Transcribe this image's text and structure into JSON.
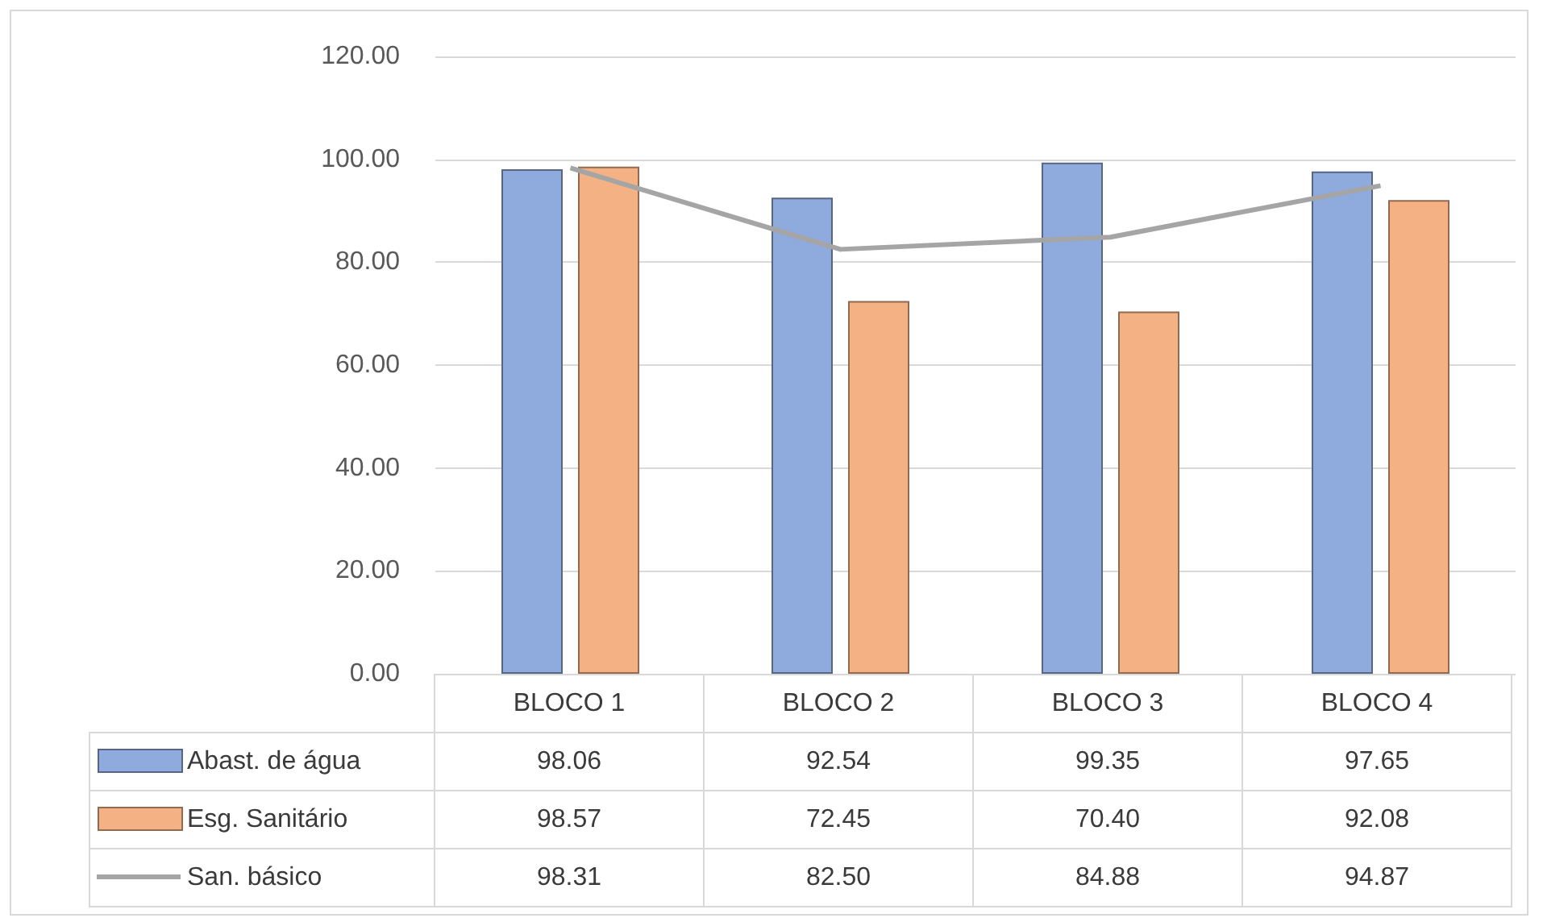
{
  "chart_data": {
    "type": "bar",
    "categories": [
      "BLOCO 1",
      "BLOCO 2",
      "BLOCO 3",
      "BLOCO 4"
    ],
    "series": [
      {
        "name": "Abast. de água",
        "color": "#8faadc",
        "values": [
          98.06,
          92.54,
          99.35,
          97.65
        ],
        "value_labels": [
          "98.06",
          "92.54",
          "99.35",
          "97.65"
        ]
      },
      {
        "name": "Esg. Sanitário",
        "color": "#f4b183",
        "values": [
          98.57,
          72.45,
          70.4,
          92.08
        ],
        "value_labels": [
          "98.57",
          "72.45",
          "70.40",
          "92.08"
        ]
      },
      {
        "name": "San. básico",
        "type": "line",
        "color": "#a5a5a5",
        "values": [
          98.31,
          82.5,
          84.88,
          94.87
        ],
        "value_labels": [
          "98.31",
          "82.50",
          "84.88",
          "94.87"
        ]
      }
    ],
    "ylim": [
      0,
      120
    ],
    "yticks": [
      {
        "value": 0,
        "label": "0.00"
      },
      {
        "value": 20,
        "label": "20.00"
      },
      {
        "value": 40,
        "label": "40.00"
      },
      {
        "value": 60,
        "label": "60.00"
      },
      {
        "value": 80,
        "label": "80.00"
      },
      {
        "value": 100,
        "label": "100.00"
      },
      {
        "value": 120,
        "label": "120.00"
      }
    ],
    "grid": "y",
    "marker": "none",
    "legend": "bottom"
  }
}
